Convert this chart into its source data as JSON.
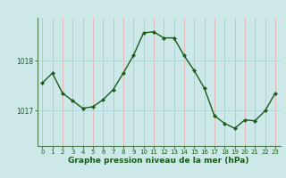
{
  "x": [
    0,
    1,
    2,
    3,
    4,
    5,
    6,
    7,
    8,
    9,
    10,
    11,
    12,
    13,
    14,
    15,
    16,
    17,
    18,
    19,
    20,
    21,
    22,
    23
  ],
  "y": [
    1017.55,
    1017.75,
    1017.35,
    1017.2,
    1017.05,
    1017.08,
    1017.22,
    1017.42,
    1017.75,
    1018.1,
    1018.55,
    1018.57,
    1018.45,
    1018.45,
    1018.1,
    1017.8,
    1017.45,
    1016.9,
    1016.75,
    1016.65,
    1016.82,
    1016.8,
    1017.0,
    1017.35
  ],
  "line_color": "#1a5c1a",
  "marker_color": "#1a5c1a",
  "bg_color": "#cce8e8",
  "grid_color": "#aad4d4",
  "axis_line_color": "#4a7a4a",
  "title": "Graphe pression niveau de la mer (hPa)",
  "xlabel_ticks": [
    "0",
    "1",
    "2",
    "3",
    "4",
    "5",
    "6",
    "7",
    "8",
    "9",
    "10",
    "11",
    "12",
    "13",
    "14",
    "15",
    "16",
    "17",
    "18",
    "19",
    "20",
    "21",
    "22",
    "23"
  ],
  "ytick_labels": [
    "1017",
    "1018"
  ],
  "ytick_values": [
    1017.0,
    1018.0
  ],
  "ylim": [
    1016.3,
    1018.85
  ],
  "xlim": [
    -0.5,
    23.5
  ],
  "title_fontsize": 6.5,
  "tick_fontsize": 5.5,
  "linewidth": 1.0,
  "markersize": 2.2
}
